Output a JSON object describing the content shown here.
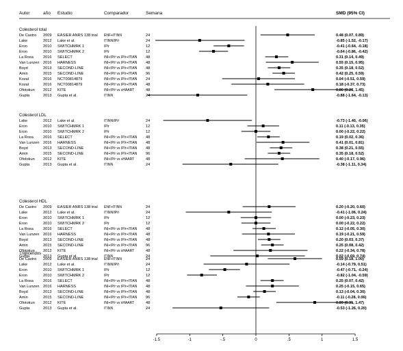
{
  "chart_data": {
    "type": "forest",
    "headers": {
      "author": "Autor",
      "year": "año",
      "study": "Estudio",
      "comparator": "Comparador",
      "week": "Semana",
      "effect": "SMD (95% CI)"
    },
    "xlim": [
      -1.5,
      1.5
    ],
    "x_ticks": [
      -1.5,
      -1,
      -0.5,
      0,
      0.5,
      1,
      1.5
    ],
    "x_tick_labels": [
      "-1.5",
      "-1",
      "-.5",
      "0",
      ".5",
      "1",
      "1.5"
    ],
    "groups": [
      {
        "title": "Colesterol total",
        "rows": [
          {
            "author": "De Castro",
            "year": "2009",
            "study": "EASIER ANRS 138 trial",
            "comparator": "ENF+ITINN",
            "week": "24",
            "label": "0.48 (0.07, 0.89)",
            "smd": 0.48,
            "lo": 0.07,
            "hi": 0.89
          },
          {
            "author": "Lake",
            "year": "2012",
            "study": "Lake et al.",
            "comparator": "ITINN/IP/r",
            "week": "24",
            "label": "-0.85 (-1.52, -0.17)",
            "smd": -0.85,
            "lo": -1.52,
            "hi": -0.17
          },
          {
            "author": "Eron",
            "year": "2010",
            "study": "SWITCHMRK 1",
            "comparator": "IP/r",
            "week": "12",
            "label": "-0.41 (-0.64, -0.18)",
            "smd": -0.41,
            "lo": -0.64,
            "hi": -0.18
          },
          {
            "author": "Eron",
            "year": "2010",
            "study": "SWITCHMRK 2",
            "comparator": "IP/r",
            "week": "12",
            "label": "-0.64 (-0.86, -0.42)",
            "smd": -0.64,
            "lo": -0.86,
            "hi": -0.42
          },
          {
            "author": "La Rosa",
            "year": "2016",
            "study": "SELECT",
            "comparator": "INI+IP/r vs IP/r+ITIAN",
            "week": "48",
            "label": "0.31 (0.14, 0.49)",
            "smd": 0.31,
            "lo": 0.14,
            "hi": 0.49
          },
          {
            "author": "Van Lunzen",
            "year": "2016",
            "study": "HARNESS",
            "comparator": "INI+IP/r vs IP/r+ITIAN",
            "week": "48",
            "label": "0.55 (0.15, 0.95)",
            "smd": 0.55,
            "lo": 0.15,
            "hi": 0.95
          },
          {
            "author": "Boyd",
            "year": "2013",
            "study": "SECOND-LINE",
            "comparator": "INI+IP/r vs IP/r+ITIAN",
            "week": "48",
            "label": "0.35 (0.18, 0.52)",
            "smd": 0.35,
            "lo": 0.18,
            "hi": 0.52
          },
          {
            "author": "Amin",
            "year": "2015",
            "study": "SECOND-LINE",
            "comparator": "INI+IP/r vs IP/r+ITIAN",
            "week": "96",
            "label": "0.42 (0.25, 0.59)",
            "smd": 0.42,
            "lo": 0.25,
            "hi": 0.59
          },
          {
            "author": "Kozal",
            "year": "2016",
            "study": "NCT00814879",
            "comparator": "INI+IP/r vs IP/r+ITIAN",
            "week": "24",
            "label": "0.04 (-0.51, 0.59)",
            "smd": 0.04,
            "lo": -0.51,
            "hi": 0.59
          },
          {
            "author": "Kozal",
            "year": "2016",
            "study": "NCT00814879",
            "comparator": "INI+IP/r vs IP/r+ITIAN",
            "week": "48",
            "label": "0.18 (-0.37, 0.73)",
            "smd": 0.18,
            "lo": -0.37,
            "hi": 0.73
          },
          {
            "author": "Ofotokun",
            "year": "2012",
            "study": "KITE",
            "comparator": "INI+IP/r vs sHAART",
            "week": "48",
            "label": "0.86 (0.28, 1.45)",
            "smd": 0.86,
            "lo": 0.28,
            "hi": 1.45
          },
          {
            "author": "Gupta",
            "year": "2013",
            "study": "Gupta et al.",
            "comparator": "ITINN",
            "week": "24",
            "label": "-0.88 (-1.64, -0.13)",
            "smd": -0.88,
            "lo": -1.64,
            "hi": -0.13
          }
        ]
      },
      {
        "title": "Colesterol LDL",
        "rows": [
          {
            "author": "Lake",
            "year": "2012",
            "study": "Lake et al.",
            "comparator": "ITINN/IP/r",
            "week": "24",
            "label": "-0.73 (-1.40, -0.06)",
            "smd": -0.73,
            "lo": -1.4,
            "hi": -0.06
          },
          {
            "author": "Eron",
            "year": "2010",
            "study": "SWITCHMRK 1",
            "comparator": "IP/r",
            "week": "12",
            "label": "0.11 (-0.13, 0.35)",
            "smd": 0.11,
            "lo": -0.13,
            "hi": 0.35
          },
          {
            "author": "Eron",
            "year": "2010",
            "study": "SWITCHMRK 2",
            "comparator": "IP/r",
            "week": "12",
            "label": "0.00 (-0.22, 0.22)",
            "smd": 0.0,
            "lo": -0.22,
            "hi": 0.22
          },
          {
            "author": "La Rosa",
            "year": "2016",
            "study": "SELECT",
            "comparator": "INI+IP/r vs IP/r+ITIAN",
            "week": "48",
            "label": "0.19 (0.02, 0.36)",
            "smd": 0.19,
            "lo": 0.02,
            "hi": 0.36
          },
          {
            "author": "Van Lunzen",
            "year": "2016",
            "study": "HARNESS",
            "comparator": "INI+IP/r vs IP/r+ITIAN",
            "week": "48",
            "label": "0.41 (0.01, 0.81)",
            "smd": 0.41,
            "lo": 0.01,
            "hi": 0.81
          },
          {
            "author": "Boyd",
            "year": "2013",
            "study": "SECOND-LINE",
            "comparator": "INI+IP/r vs IP/r+ITIAN",
            "week": "48",
            "label": "0.38 (0.21, 0.55)",
            "smd": 0.38,
            "lo": 0.21,
            "hi": 0.55
          },
          {
            "author": "Amin",
            "year": "2015",
            "study": "SECOND-LINE",
            "comparator": "INI+IP/r vs IP/r+ITIAN",
            "week": "96",
            "label": "0.35 (0.18, 0.52)",
            "smd": 0.35,
            "lo": 0.18,
            "hi": 0.52
          },
          {
            "author": "Ofotokun",
            "year": "2012",
            "study": "KITE",
            "comparator": "INI+IP/r vs sHAART",
            "week": "48",
            "label": "0.40 (-0.17, 0.96)",
            "smd": 0.4,
            "lo": -0.17,
            "hi": 0.96
          },
          {
            "author": "Gupta",
            "year": "2013",
            "study": "Gupta et al.",
            "comparator": "ITINN",
            "week": "24",
            "label": "-0.38 (-1.11, 0.34)",
            "smd": -0.38,
            "lo": -1.11,
            "hi": 0.34
          }
        ]
      },
      {
        "title": "Colesterol HDL",
        "rows": [
          {
            "author": "De Castro",
            "year": "2009",
            "study": "EASIER ANRS 138 trial",
            "comparator": "ENF+ITINN",
            "week": "24",
            "label": "0.20 (-0.20, 0.60)",
            "smd": 0.2,
            "lo": -0.2,
            "hi": 0.6
          },
          {
            "author": "Lake",
            "year": "2012",
            "study": "Lake et al.",
            "comparator": "ITINN/IP/r",
            "week": "24",
            "label": "-0.41 (-1.06, 0.24)",
            "smd": -0.41,
            "lo": -1.06,
            "hi": 0.24
          },
          {
            "author": "Eron",
            "year": "2010",
            "study": "SWITCHMRK 1",
            "comparator": "IP/r",
            "week": "12",
            "label": "0.00 (-0.23, 0.23)",
            "smd": 0.0,
            "lo": -0.23,
            "hi": 0.23
          },
          {
            "author": "Eron",
            "year": "2010",
            "study": "SWITCHMRK 2",
            "comparator": "IP/r",
            "week": "12",
            "label": "0.00 (-0.22, 0.22)",
            "smd": 0.0,
            "lo": -0.22,
            "hi": 0.22
          },
          {
            "author": "La Rosa",
            "year": "2016",
            "study": "SELECT",
            "comparator": "INI+IP/r vs IP/r+ITIAN",
            "week": "48",
            "label": "0.12 (-0.05, 0.30)",
            "smd": 0.12,
            "lo": -0.05,
            "hi": 0.3
          },
          {
            "author": "Van Lunzen",
            "year": "2016",
            "study": "HARNESS",
            "comparator": "INI+IP/r vs IP/r+ITIAN",
            "week": "48",
            "label": "0.19 (-0.21, 0.59)",
            "smd": 0.19,
            "lo": -0.21,
            "hi": 0.59
          },
          {
            "author": "Boyd",
            "year": "2013",
            "study": "SECOND-LINE",
            "comparator": "INI+IP/r vs IP/r+ITIAN",
            "week": "48",
            "label": "0.20 (0.03, 0.37)",
            "smd": 0.2,
            "lo": 0.03,
            "hi": 0.37
          },
          {
            "author": "Amin",
            "year": "2015",
            "study": "SECOND-LINE",
            "comparator": "INI+IP/r vs IP/r+ITIAN",
            "week": "96",
            "label": "0.25 (0.08, 0.42)",
            "smd": 0.25,
            "lo": 0.08,
            "hi": 0.42
          },
          {
            "author": "Ofotokun",
            "year": "2012",
            "study": "KITE",
            "comparator": "INI+IP/r vs sHAART",
            "week": "48",
            "label": "0.22 (-0.34, 0.78)",
            "smd": 0.22,
            "lo": -0.34,
            "hi": 0.78
          },
          {
            "author": "Gupta",
            "year": "2013",
            "study": "Gupta et al.",
            "comparator": "ITINN",
            "week": "24",
            "label": "0.02 (-0.69, 0.74)",
            "smd": 0.02,
            "lo": -0.69,
            "hi": 0.74
          }
        ]
      },
      {
        "title": "Trigliceridos",
        "rows": [
          {
            "author": "De Castro",
            "year": "2009",
            "study": "EASIER ANRS 138 trial",
            "comparator": "ENF+ITINN",
            "week": "24",
            "label": "0.59 (0.18, 1.00)",
            "smd": 0.59,
            "lo": 0.18,
            "hi": 1.0
          },
          {
            "author": "Lake",
            "year": "2012",
            "study": "Lake et al.",
            "comparator": "ITINN/IP/r",
            "week": "24",
            "label": "-0.14 (-0.79, 0.51)",
            "smd": -0.14,
            "lo": -0.79,
            "hi": 0.51
          },
          {
            "author": "Eron",
            "year": "2010",
            "study": "SWITCHMRK 1",
            "comparator": "IP/r",
            "week": "12",
            "label": "-0.47 (-0.71, -0.24)",
            "smd": -0.47,
            "lo": -0.71,
            "hi": -0.24
          },
          {
            "author": "Eron",
            "year": "2010",
            "study": "SWITCHMRK 2",
            "comparator": "IP/r",
            "week": "12",
            "label": "-0.82 (-1.04, -0.59)",
            "smd": -0.82,
            "lo": -1.04,
            "hi": -0.59
          },
          {
            "author": "La Rosa",
            "year": "2016",
            "study": "SELECT",
            "comparator": "INI+IP/r vs IP/r+ITIAN",
            "week": "48",
            "label": "0.25 (0.07, 0.42)",
            "smd": 0.25,
            "lo": 0.07,
            "hi": 0.42
          },
          {
            "author": "Van Lunzen",
            "year": "2016",
            "study": "HARNESS",
            "comparator": "INI+IP/r vs IP/r+ITIAN",
            "week": "48",
            "label": "0.25 (-0.15, 0.65)",
            "smd": 0.25,
            "lo": -0.15,
            "hi": 0.65
          },
          {
            "author": "Boyd",
            "year": "2013",
            "study": "SECOND-LINE",
            "comparator": "INI+IP/r vs IP/r+ITIAN",
            "week": "48",
            "label": "0.13 (-0.04, 0.30)",
            "smd": 0.13,
            "lo": -0.04,
            "hi": 0.3
          },
          {
            "author": "Amin",
            "year": "2015",
            "study": "SECOND-LINE",
            "comparator": "INI+IP/r vs IP/r+ITIAN",
            "week": "96",
            "label": "-0.11 (-0.28, 0.06)",
            "smd": -0.11,
            "lo": -0.28,
            "hi": 0.06
          },
          {
            "author": "Ofotokun",
            "year": "2012",
            "study": "KITE",
            "comparator": "INI+IP/r vs sHAART",
            "week": "48",
            "label": "0.89 (0.31, 1.47)",
            "smd": 0.89,
            "lo": 0.31,
            "hi": 1.47
          },
          {
            "author": "Gupta",
            "year": "2013",
            "study": "Gupta et al.",
            "comparator": "ITINN",
            "week": "24",
            "label": "-0.53 (-1.26, 0.20)",
            "smd": -0.53,
            "lo": -1.26,
            "hi": 0.2
          }
        ]
      }
    ]
  }
}
